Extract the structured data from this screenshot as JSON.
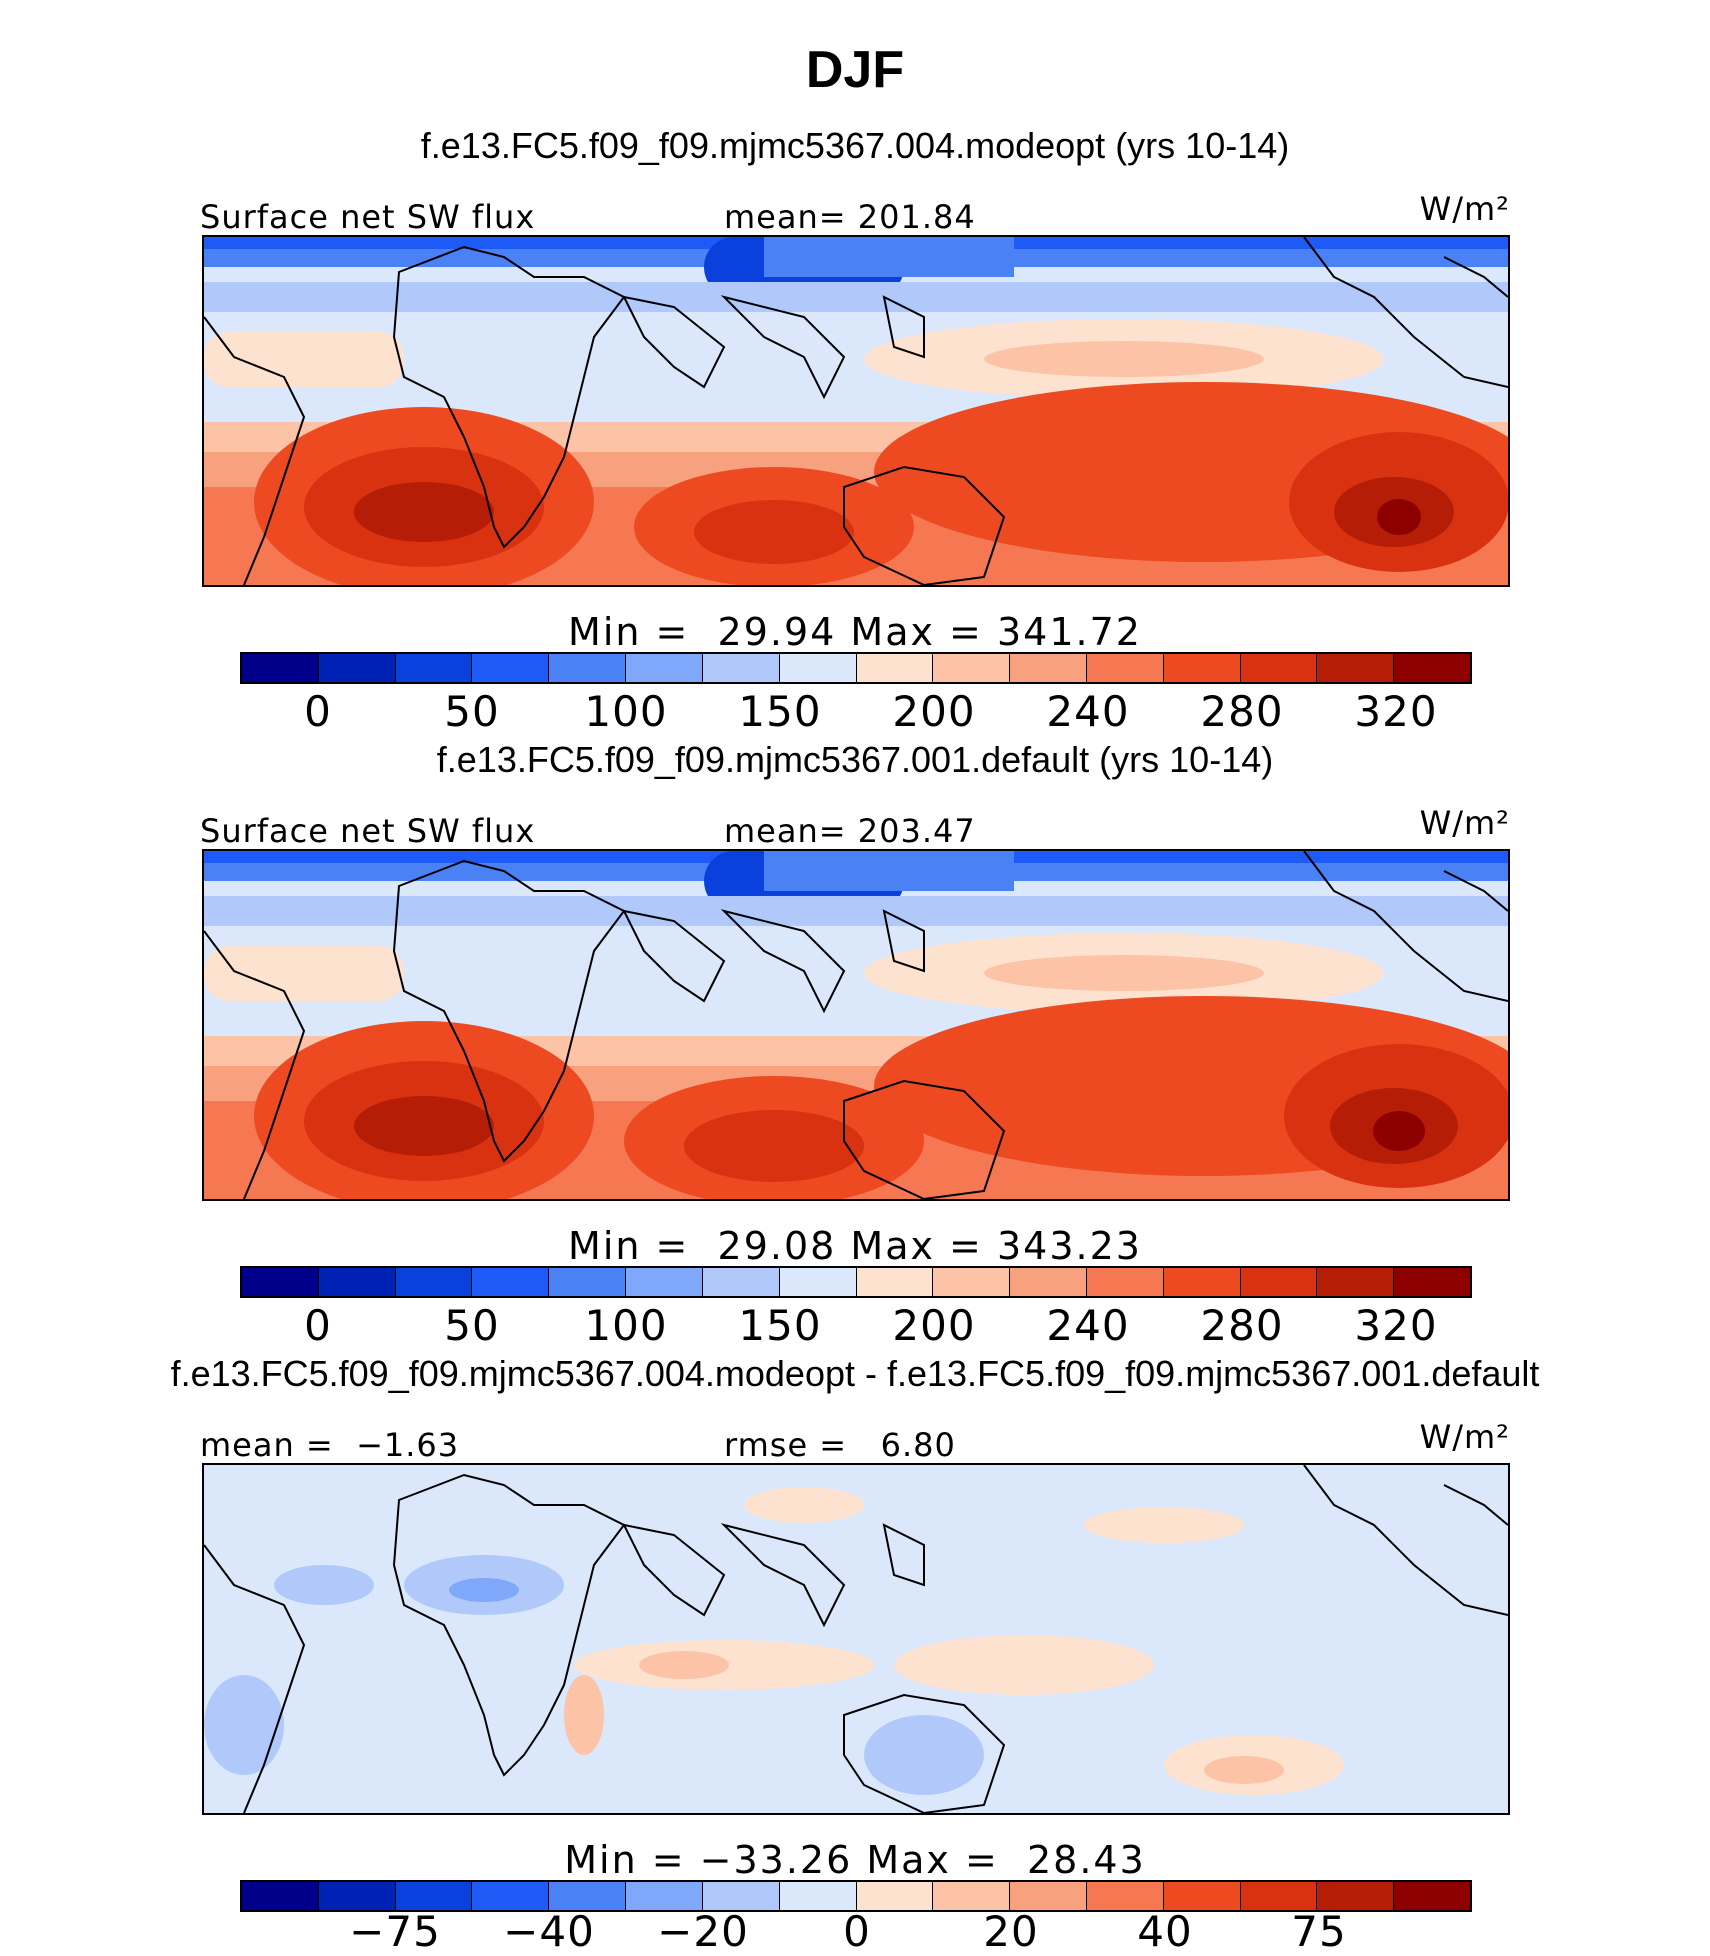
{
  "figure": {
    "title": "DJF",
    "units": "W/m²"
  },
  "panels": [
    {
      "case_title": "f.e13.FC5.f09_f09.mjmc5367.004.modeopt (yrs 10-14)",
      "left_label": "Surface net SW flux",
      "stat_label": "mean= 201.84",
      "min_max": "Min =  29.94 Max = 341.72",
      "colorbar_ticks": [
        "0",
        "50",
        "100",
        "150",
        "200",
        "240",
        "280",
        "320"
      ]
    },
    {
      "case_title": "f.e13.FC5.f09_f09.mjmc5367.001.default (yrs 10-14)",
      "left_label": "Surface net SW flux",
      "stat_label": "mean= 203.47",
      "min_max": "Min =  29.08 Max = 343.23",
      "colorbar_ticks": [
        "0",
        "50",
        "100",
        "150",
        "200",
        "240",
        "280",
        "320"
      ]
    },
    {
      "case_title": "f.e13.FC5.f09_f09.mjmc5367.004.modeopt - f.e13.FC5.f09_f09.mjmc5367.001.default",
      "left_label": "mean =  −1.63",
      "stat_label": "rmse =   6.80",
      "min_max": "Min = −33.26 Max =  28.43",
      "colorbar_ticks": [
        "−75",
        "−40",
        "−20",
        "0",
        "20",
        "40",
        "75"
      ]
    }
  ],
  "colors": {
    "palette": [
      "#00008a",
      "#0022b4",
      "#0a40dc",
      "#1e5af5",
      "#4a82f5",
      "#80a8fa",
      "#b0c8fa",
      "#dbe8fb",
      "#fde2cf",
      "#fcc3a6",
      "#f7a17e",
      "#f57852",
      "#ed4a22",
      "#d83211",
      "#b51d06",
      "#8c0000"
    ]
  },
  "chart_data": [
    {
      "type": "heatmap",
      "title": "Surface net SW flux",
      "case": "f.e13.FC5.f09_f09.mjmc5367.004.modeopt (yrs 10-14)",
      "units": "W/m²",
      "mean": 201.84,
      "min": 29.94,
      "max": 341.72,
      "colorbar_levels": [
        0,
        25,
        50,
        75,
        100,
        125,
        150,
        175,
        200,
        220,
        240,
        260,
        280,
        300,
        320
      ],
      "colorbar_tick_labels": [
        "0",
        "50",
        "100",
        "150",
        "200",
        "240",
        "280",
        "320"
      ]
    },
    {
      "type": "heatmap",
      "title": "Surface net SW flux",
      "case": "f.e13.FC5.f09_f09.mjmc5367.001.default (yrs 10-14)",
      "units": "W/m²",
      "mean": 203.47,
      "min": 29.08,
      "max": 343.23,
      "colorbar_levels": [
        0,
        25,
        50,
        75,
        100,
        125,
        150,
        175,
        200,
        220,
        240,
        260,
        280,
        300,
        320
      ],
      "colorbar_tick_labels": [
        "0",
        "50",
        "100",
        "150",
        "200",
        "240",
        "280",
        "320"
      ]
    },
    {
      "type": "heatmap",
      "title": "f.e13.FC5.f09_f09.mjmc5367.004.modeopt - f.e13.FC5.f09_f09.mjmc5367.001.default",
      "units": "W/m²",
      "mean": -1.63,
      "rmse": 6.8,
      "min": -33.26,
      "max": 28.43,
      "colorbar_levels": [
        -100,
        -75,
        -50,
        -40,
        -30,
        -20,
        -10,
        0,
        10,
        20,
        30,
        40,
        50,
        75,
        100
      ],
      "colorbar_tick_labels": [
        "−75",
        "−40",
        "−20",
        "0",
        "20",
        "40",
        "75"
      ]
    }
  ]
}
